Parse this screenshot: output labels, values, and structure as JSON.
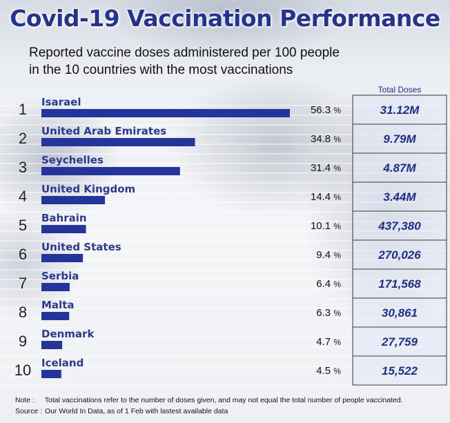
{
  "title": "Covid-19 Vaccination Performance",
  "subtitle_line1": "Reported vaccine doses administered per 100 people",
  "subtitle_line2": "in the 10 countries with the most vaccinations",
  "notes": {
    "note_label": "Note :",
    "note_text": "Total vaccinations refer to the number of doses given,  and may not equal the total number of people vaccinated.",
    "source_label": "Source :",
    "source_text": "Our World In Data, as of 1 Feb with lastest available data"
  },
  "colors": {
    "title": "#24348e",
    "bar": "#23349a",
    "country_label": "#2a3a92",
    "total": "#1e2f8a"
  },
  "chart_data": {
    "type": "bar",
    "orientation": "horizontal",
    "title": "Covid-19 Vaccination Performance",
    "subtitle": "Reported vaccine doses administered per 100 people in the 10 countries with the most vaccinations",
    "xlim": [
      0,
      56.3
    ],
    "unit_symbol": "%",
    "total_header": "Total Doses",
    "ranks": [
      "1",
      "2",
      "3",
      "4",
      "5",
      "6",
      "7",
      "8",
      "9",
      "10"
    ],
    "categories": [
      "Isarael",
      "United Arab Emirates",
      "Seychelles",
      "United Kingdom",
      "Bahrain",
      "United States",
      "Serbia",
      "Malta",
      "Denmark",
      "Iceland"
    ],
    "values": [
      56.3,
      34.8,
      31.4,
      14.4,
      10.1,
      9.4,
      6.4,
      6.3,
      4.7,
      4.5
    ],
    "value_labels": [
      "56.3",
      "34.8",
      "31.4",
      "14.4",
      "10.1",
      "9.4",
      "6.4",
      "6.3",
      "4.7",
      "4.5"
    ],
    "total_doses": [
      "31.12M",
      "9.79M",
      "4.87M",
      "3.44M",
      "437,380",
      "270,026",
      "171,568",
      "30,861",
      "27,759",
      "15,522"
    ]
  }
}
